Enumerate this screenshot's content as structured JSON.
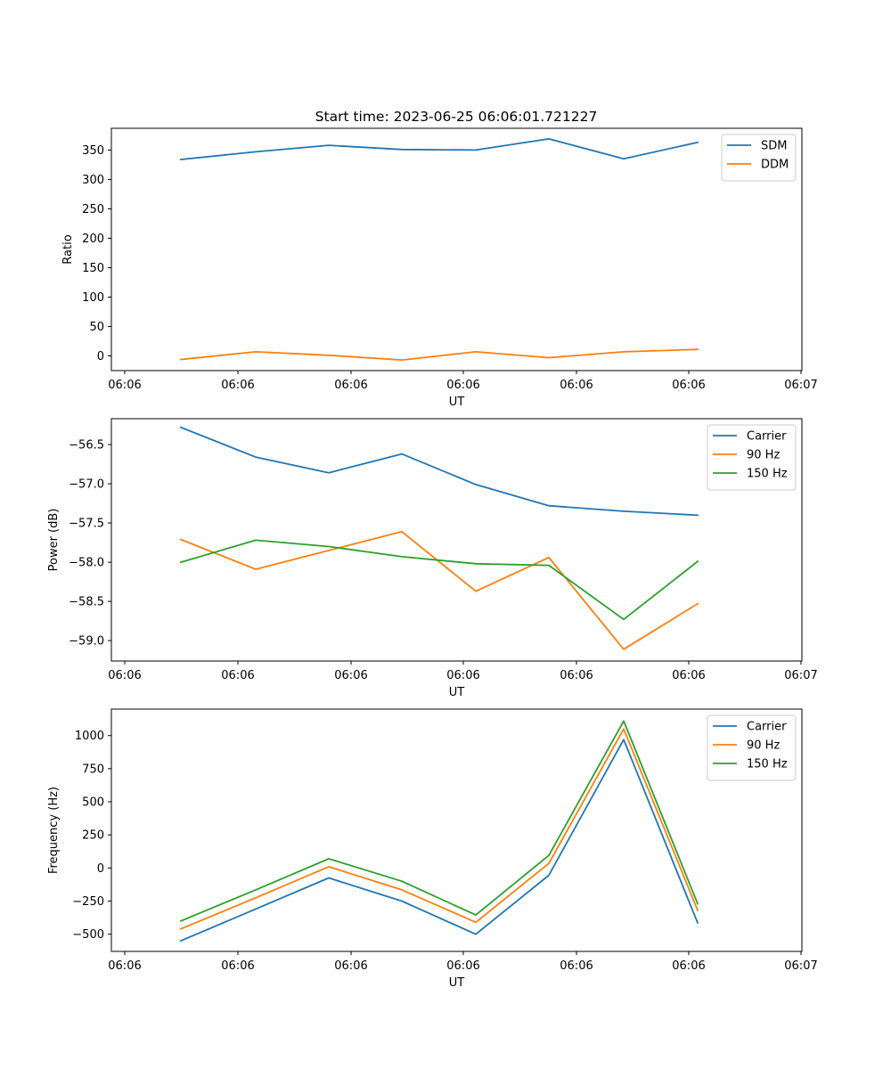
{
  "title": "Start time: 2023-06-25 06:06:01.721227",
  "colors": {
    "blue": "#1f77b4",
    "orange": "#ff7f0e",
    "green": "#2ca02c"
  },
  "chart_data": [
    {
      "type": "line",
      "xlabel": "UT",
      "ylabel": "Ratio",
      "x_ticks": [
        "06:06",
        "06:06",
        "06:06",
        "06:06",
        "06:06",
        "06:06",
        "06:07"
      ],
      "y_ticks": [
        "0",
        "50",
        "100",
        "150",
        "200",
        "250",
        "300",
        "350"
      ],
      "ylim": [
        -25,
        387
      ],
      "legend": "top-right",
      "grid": false,
      "series": [
        {
          "name": "SDM",
          "color": "#1f77b4",
          "values": [
            334,
            347,
            358,
            351,
            350,
            369,
            335,
            363
          ]
        },
        {
          "name": "DDM",
          "color": "#ff7f0e",
          "values": [
            -6,
            7,
            1,
            -7,
            7,
            -3,
            7,
            11
          ]
        }
      ]
    },
    {
      "type": "line",
      "xlabel": "UT",
      "ylabel": "Power (dB)",
      "x_ticks": [
        "06:06",
        "06:06",
        "06:06",
        "06:06",
        "06:06",
        "06:06",
        "06:07"
      ],
      "y_ticks": [
        "−56.5",
        "−57.0",
        "−57.5",
        "−58.0",
        "−58.5",
        "−59.0"
      ],
      "ylim": [
        -59.26,
        -56.17
      ],
      "legend": "top-right",
      "grid": false,
      "series": [
        {
          "name": "Carrier",
          "color": "#1f77b4",
          "values": [
            -56.28,
            -56.66,
            -56.86,
            -56.62,
            -57.01,
            -57.28,
            -57.35,
            -57.4
          ]
        },
        {
          "name": "90 Hz",
          "color": "#ff7f0e",
          "values": [
            -57.71,
            -58.09,
            -57.85,
            -57.61,
            -58.37,
            -57.94,
            -59.11,
            -58.53
          ]
        },
        {
          "name": "150 Hz",
          "color": "#2ca02c",
          "values": [
            -58.0,
            -57.72,
            -57.8,
            -57.93,
            -58.02,
            -58.04,
            -58.73,
            -57.99
          ]
        }
      ]
    },
    {
      "type": "line",
      "xlabel": "UT",
      "ylabel": "Frequency (Hz)",
      "x_ticks": [
        "06:06",
        "06:06",
        "06:06",
        "06:06",
        "06:06",
        "06:06",
        "06:07"
      ],
      "y_ticks": [
        "−500",
        "−250",
        "0",
        "250",
        "500",
        "750",
        "1000"
      ],
      "ylim": [
        -630,
        1200
      ],
      "legend": "top-right",
      "grid": false,
      "series": [
        {
          "name": "Carrier",
          "color": "#1f77b4",
          "values": [
            -550,
            -310,
            -75,
            -250,
            -500,
            -55,
            970,
            -415
          ]
        },
        {
          "name": "90 Hz",
          "color": "#ff7f0e",
          "values": [
            -460,
            -225,
            10,
            -165,
            -410,
            35,
            1050,
            -320
          ]
        },
        {
          "name": "150 Hz",
          "color": "#2ca02c",
          "values": [
            -400,
            -165,
            70,
            -100,
            -355,
            95,
            1110,
            -270
          ]
        }
      ]
    }
  ]
}
